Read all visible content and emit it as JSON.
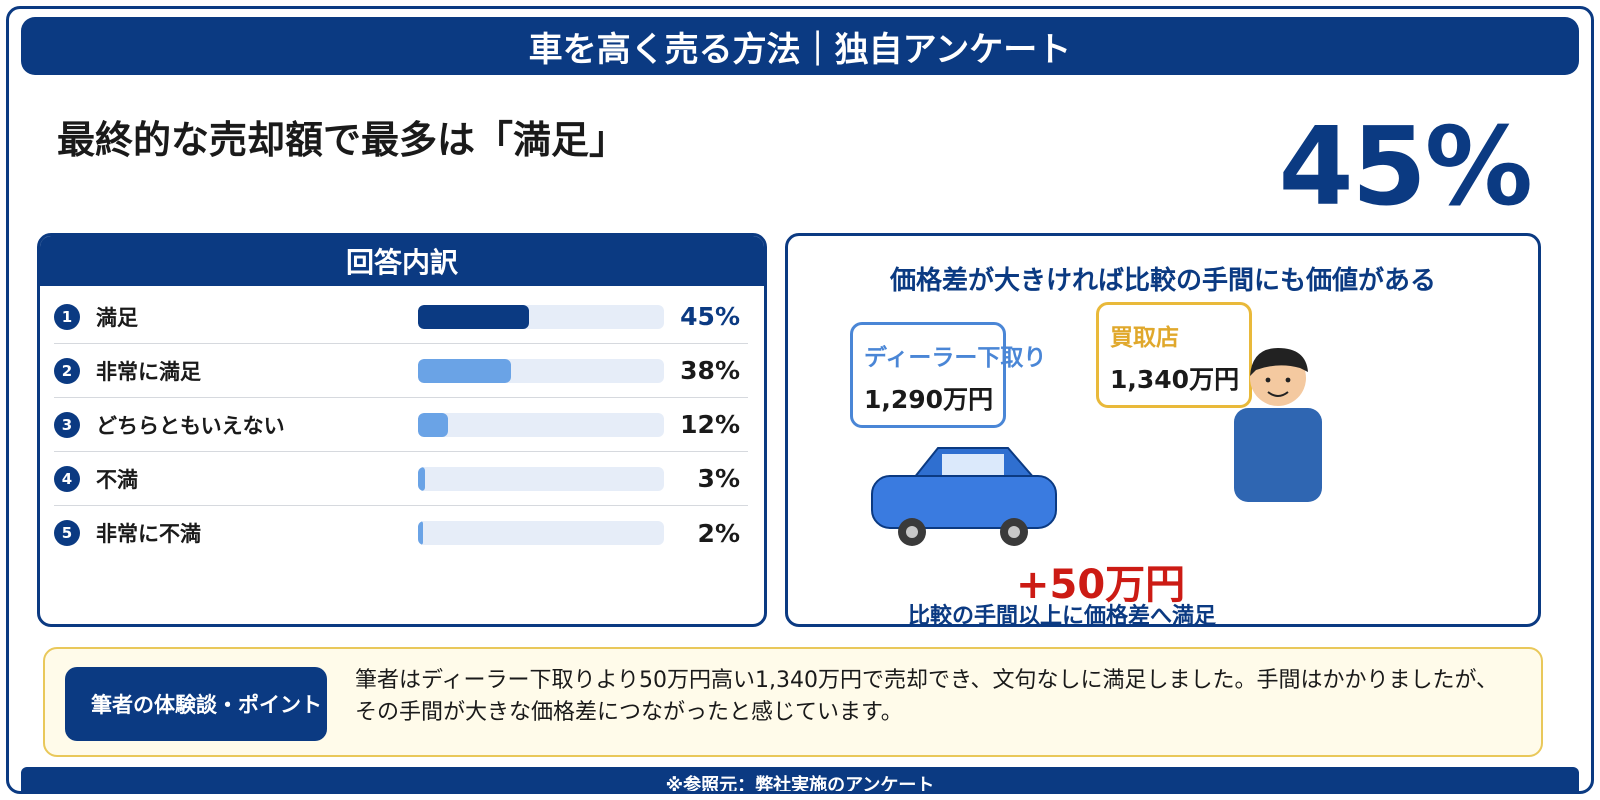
{
  "header": {
    "title": "車を高く売る方法｜独自アンケート"
  },
  "headline": "最終的な売却額で最多は「満足」",
  "highlight": {
    "percent": "45%"
  },
  "breakdown": {
    "title": "回答内訳",
    "items": [
      {
        "num": "1",
        "label": "満足",
        "percent": "45%",
        "value": 45
      },
      {
        "num": "2",
        "label": "非常に満足",
        "percent": "38%",
        "value": 38
      },
      {
        "num": "3",
        "label": "どちらともいえない",
        "percent": "12%",
        "value": 12
      },
      {
        "num": "4",
        "label": "不満",
        "percent": "3%",
        "value": 3
      },
      {
        "num": "5",
        "label": "非常に不満",
        "percent": "2%",
        "value": 2
      }
    ]
  },
  "comparison": {
    "title": "価格差が大きければ比較の手間にも価値がある",
    "dealer_label": "ディーラー下取り",
    "dealer_price": "1,290万円",
    "shop_label": "買取店",
    "shop_price": "1,340万円",
    "difference": "+50万円",
    "footer": "比較の手間以上に価格差へ満足"
  },
  "note": {
    "badge": "筆者の体験談・ポイント",
    "text": "筆者はディーラー下取りより50万円高い1,340万円で売却でき、文句なしに満足しました。手間はかかりましたが、その手間が大きな価格差につながったと感じています。"
  },
  "footer": {
    "source": "※参照元：弊社実施のアンケート"
  },
  "colors": {
    "navy": "#0b3a82",
    "bar_primary": "#0b3a82",
    "bar_secondary": "#6aa3e6",
    "accent_red": "#cc1b14",
    "accent_yellow": "#e9b93a"
  }
}
